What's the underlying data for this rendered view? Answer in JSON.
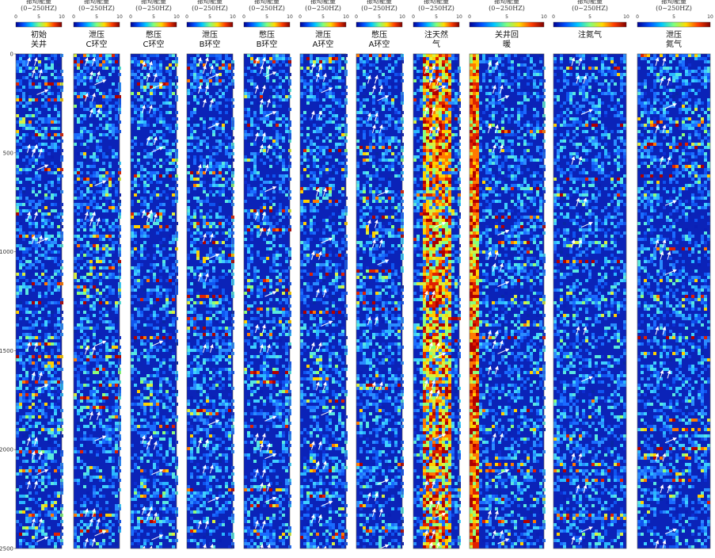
{
  "chart_data": {
    "type": "heatmap",
    "colorbar": {
      "label_line1": "振动能量",
      "label_line2_default": "(0~250HZ)",
      "ticks": [
        "0",
        "5",
        "10"
      ],
      "colors": [
        "#00008f",
        "#0050ff",
        "#00c8ff",
        "#7fff7f",
        "#ffdc00",
        "#ff3c00",
        "#800000"
      ]
    },
    "y_axis": {
      "ticks": [
        "0",
        "500",
        "1000",
        "1500",
        "2000",
        "2500"
      ],
      "range": [
        0,
        2500
      ]
    },
    "panels": [
      {
        "title": [
          "初始",
          "关井"
        ],
        "range_label": "(0~250HZ)",
        "arrow_depths": [
          20,
          80,
          190,
          460,
          480,
          570,
          800,
          920,
          940,
          1460,
          1610,
          1680,
          1940,
          2010,
          2110,
          2160,
          2350,
          2450
        ]
      },
      {
        "title": [
          "泄压",
          "C环空"
        ],
        "range_label": "(0~250HZ)",
        "arrow_depths": [
          20,
          90,
          140,
          200,
          280,
          650,
          800,
          830,
          1460,
          1480,
          1810,
          1940,
          2300,
          2350,
          2420,
          2450
        ]
      },
      {
        "title": [
          "憋压",
          "C环空"
        ],
        "range_label": "(0~250HZ)",
        "arrow_depths": [
          40,
          100,
          160,
          260,
          420,
          480,
          790,
          810,
          1460,
          1930,
          1960,
          2110,
          2290,
          2320,
          2440,
          2490
        ]
      },
      {
        "title": [
          "泄压",
          "B环空"
        ],
        "range_label": "(0~250HZ)",
        "arrow_depths": [
          20,
          60,
          110,
          160,
          230,
          360,
          560,
          910,
          1020,
          1110,
          1470,
          1860,
          1950,
          2080,
          2250,
          2360,
          2480
        ]
      },
      {
        "title": [
          "憋压",
          "B环空"
        ],
        "range_label": "(0~250HZ)",
        "arrow_depths": [
          20,
          60,
          100,
          160,
          230,
          300,
          400,
          460,
          680,
          800,
          880,
          1210,
          1370,
          1470,
          1840,
          1920,
          1970,
          2030,
          2100,
          2170,
          2250,
          2360,
          2480
        ]
      },
      {
        "title": [
          "泄压",
          "A环空"
        ],
        "range_label": "(0~250HZ)",
        "arrow_depths": [
          50,
          100,
          180,
          290,
          680,
          940,
          1000,
          1190,
          1360,
          1460,
          1660,
          1810,
          1960,
          2060,
          2270,
          2330,
          2490
        ]
      },
      {
        "title": [
          "憋压",
          "A环空"
        ],
        "range_label": "(0~250HZ)",
        "arrow_depths": [
          110,
          160,
          220,
          300,
          360,
          700,
          840,
          940,
          1050,
          1330,
          1660,
          2160,
          2220,
          2300,
          2490
        ]
      },
      {
        "title": [
          "注天然",
          "气"
        ],
        "range_label": "(0~250HZ)",
        "arrow_depths": [
          60,
          120,
          170,
          270,
          370,
          860,
          1200,
          1460,
          1520,
          1650,
          1700,
          1930,
          2160,
          2260,
          2330,
          2410,
          2470
        ]
      },
      {
        "title": [
          "关井回",
          "暖"
        ],
        "range_label": "(0~250HZ)",
        "arrow_depths": [
          40,
          160,
          220,
          360,
          460,
          900,
          1000,
          1060,
          1160,
          1400,
          1450,
          1500,
          1580,
          1920,
          2110,
          2310,
          2410,
          2460
        ]
      },
      {
        "title": [
          "注氮气"
        ],
        "range_label": "(0~250HZ)",
        "arrow_depths": [
          20,
          110,
          290,
          520,
          730,
          860,
          940,
          1380,
          1640,
          2020,
          2180,
          2400,
          2440
        ]
      },
      {
        "title": [
          "泄压",
          "氮气"
        ],
        "range_label": "(0~250HZ)",
        "arrow_depths": [
          20,
          120,
          260,
          360,
          520,
          750,
          940,
          1000,
          1100,
          1380,
          1600,
          1950,
          2020,
          2180,
          2410,
          2460
        ]
      }
    ]
  }
}
